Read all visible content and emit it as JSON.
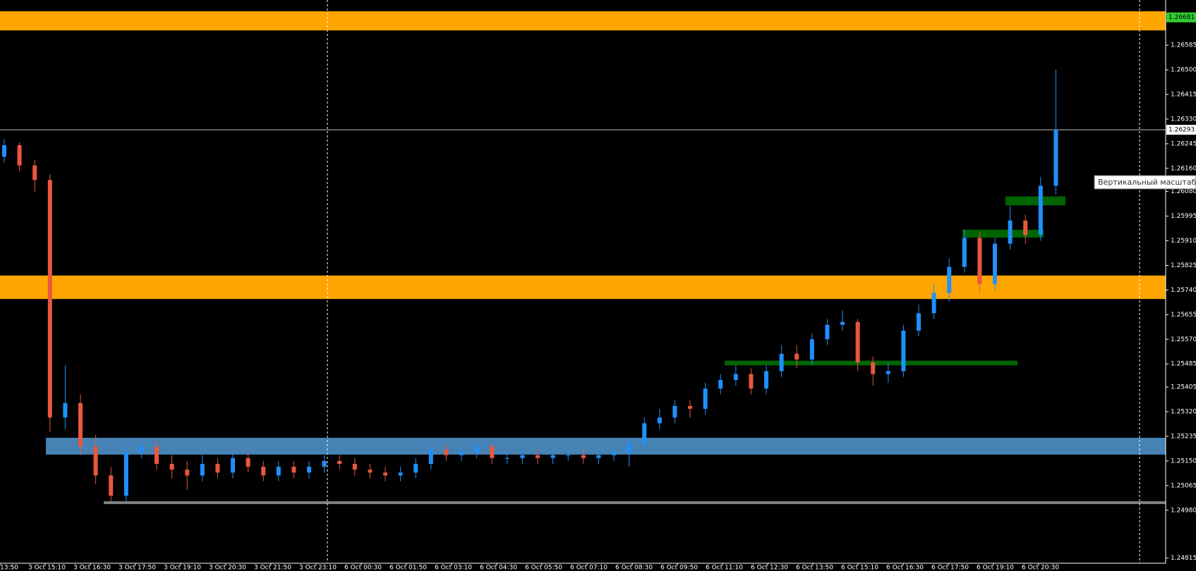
{
  "chart_data": {
    "type": "candlestick",
    "ylim": [
      1.24797,
      1.26741
    ],
    "yticks": [
      1.26585,
      {
        "value": 1.265,
        "label": "1.26500"
      },
      1.26415,
      {
        "value": 1.2633,
        "label": "1.26330"
      },
      1.26245,
      {
        "value": 1.2616,
        "label": "1.26160"
      },
      {
        "value": 1.2608,
        "label": "1.26080"
      },
      1.25995,
      {
        "value": 1.2591,
        "label": "1.25910"
      },
      1.25825,
      {
        "value": 1.2574,
        "label": "1.25740"
      },
      1.25655,
      {
        "value": 1.2557,
        "label": "1.25570"
      },
      1.25485,
      1.25405,
      {
        "value": 1.2532,
        "label": "1.25320"
      },
      1.25235,
      {
        "value": 1.2515,
        "label": "1.25150"
      },
      1.25065,
      {
        "value": 1.2498,
        "label": "1.24980"
      },
      1.24815
    ],
    "x_labels": [
      "13:50",
      "3 Oct 15:10",
      "3 Oct 16:30",
      "3 Oct 17:50",
      "3 Oct 19:10",
      "3 Oct 20:30",
      "3 Oct 21:50",
      "3 Oct 23:10",
      "6 Oct 00:30",
      "6 Oct 01:50",
      "6 Oct 03:10",
      "6 Oct 04:30",
      "6 Oct 05:50",
      "6 Oct 07:10",
      "6 Oct 08:30",
      "6 Oct 09:50",
      "6 Oct 11:10",
      "6 Oct 12:30",
      "6 Oct 13:50",
      "6 Oct 15:10",
      "6 Oct 16:30",
      "6 Oct 17:50",
      "6 Oct 19:10",
      "6 Oct 20:30"
    ],
    "bull_color": "#1e90ff",
    "bear_color": "#e9573f",
    "open": [
      1.262,
      1.2624,
      1.2617,
      1.2612,
      1.253,
      1.2535,
      1.252,
      1.251,
      1.2503,
      1.2518,
      1.252,
      1.2514,
      1.2512,
      1.251,
      1.2514,
      1.2511,
      1.2516,
      1.2513,
      1.251,
      1.2513,
      1.2511,
      1.2513,
      1.2515,
      1.2514,
      1.2512,
      1.2511,
      1.251,
      1.2511,
      1.2514,
      1.2519,
      1.2517,
      1.2518,
      1.252,
      1.2516,
      1.2516,
      1.2517,
      1.2516,
      1.2517,
      1.2517,
      1.2516,
      1.2517,
      1.2518,
      1.2521,
      1.2528,
      1.253,
      1.2534,
      1.2533,
      1.254,
      1.2543,
      1.2545,
      1.254,
      1.2546,
      1.2552,
      1.255,
      1.2557,
      1.2562,
      1.2563,
      1.2549,
      1.2545,
      1.2546,
      1.256,
      1.2566,
      1.2573,
      1.2582,
      1.2592,
      1.2576,
      1.259,
      1.2598,
      1.2593,
      1.261
    ],
    "high": [
      1.2626,
      1.2625,
      1.2619,
      1.2614,
      1.2548,
      1.2538,
      1.2524,
      1.2513,
      1.2521,
      1.2523,
      1.2522,
      1.2517,
      1.2515,
      1.2517,
      1.2516,
      1.2518,
      1.2518,
      1.2515,
      1.2515,
      1.2515,
      1.2515,
      1.2517,
      1.2517,
      1.2516,
      1.2514,
      1.2513,
      1.2513,
      1.2516,
      1.2521,
      1.2521,
      1.252,
      1.2522,
      1.2521,
      1.2518,
      1.2519,
      1.2519,
      1.2519,
      1.2519,
      1.2519,
      1.2519,
      1.252,
      1.2523,
      1.253,
      1.2533,
      1.2536,
      1.2536,
      1.2542,
      1.2545,
      1.2548,
      1.2547,
      1.2548,
      1.2555,
      1.2555,
      1.2559,
      1.2564,
      1.2567,
      1.2564,
      1.2551,
      1.2549,
      1.2562,
      1.2569,
      1.2576,
      1.2585,
      1.2595,
      1.2594,
      1.2592,
      1.2603,
      1.26,
      1.2613,
      1.265
    ],
    "low": [
      1.2618,
      1.2615,
      1.2608,
      1.2525,
      1.2526,
      1.2517,
      1.2507,
      1.2501,
      1.2501,
      1.2516,
      1.2512,
      1.2509,
      1.2505,
      1.2508,
      1.2509,
      1.2509,
      1.2511,
      1.2508,
      1.2508,
      1.2509,
      1.2509,
      1.2511,
      1.2512,
      1.251,
      1.2509,
      1.2508,
      1.2508,
      1.2509,
      1.2512,
      1.2515,
      1.2515,
      1.2516,
      1.2514,
      1.2514,
      1.2514,
      1.2514,
      1.2514,
      1.2515,
      1.2514,
      1.2514,
      1.2515,
      1.2513,
      1.2519,
      1.2526,
      1.2528,
      1.253,
      1.2531,
      1.2538,
      1.2541,
      1.2538,
      1.2538,
      1.2544,
      1.2547,
      1.2548,
      1.2555,
      1.256,
      1.2546,
      1.2541,
      1.2542,
      1.2544,
      1.2558,
      1.2564,
      1.257,
      1.258,
      1.2573,
      1.2574,
      1.2588,
      1.259,
      1.2591,
      1.2607
    ],
    "close": [
      1.2624,
      1.2617,
      1.2612,
      1.253,
      1.2535,
      1.252,
      1.251,
      1.2503,
      1.2518,
      1.252,
      1.2514,
      1.2512,
      1.251,
      1.2514,
      1.2511,
      1.2516,
      1.2513,
      1.251,
      1.2513,
      1.2511,
      1.2513,
      1.2515,
      1.2514,
      1.2512,
      1.2511,
      1.251,
      1.2511,
      1.2514,
      1.2519,
      1.2517,
      1.2518,
      1.252,
      1.2516,
      1.2516,
      1.2517,
      1.2516,
      1.2517,
      1.2517,
      1.2516,
      1.2517,
      1.2518,
      1.2521,
      1.2528,
      1.253,
      1.2534,
      1.2533,
      1.254,
      1.2543,
      1.2545,
      1.254,
      1.2546,
      1.2552,
      1.255,
      1.2557,
      1.2562,
      1.2563,
      1.2549,
      1.2545,
      1.2546,
      1.256,
      1.2566,
      1.2573,
      1.2582,
      1.2592,
      1.2576,
      1.259,
      1.2598,
      1.2593,
      1.261,
      1.26293
    ],
    "zones": [
      {
        "low": 1.26636,
        "high": 1.26702,
        "color": "#ffa500"
      },
      {
        "low": 1.25709,
        "high": 1.2579,
        "color": "#ffa500"
      },
      {
        "low": 1.25172,
        "high": 1.2523,
        "color": "#4682b4"
      },
      {
        "low": 1.25007,
        "high": 1.25011,
        "color": "#808080"
      },
      {
        "low": 1.2548,
        "high": 1.25496,
        "color": "#006400"
      },
      {
        "low": 1.25921,
        "high": 1.25948,
        "color": "#006400"
      },
      {
        "low": 1.26032,
        "high": 1.26063,
        "color": "#006400"
      }
    ],
    "level_price": 1.26681,
    "current_price": 1.26293,
    "tooltip": "Вертикальный масштаб"
  }
}
